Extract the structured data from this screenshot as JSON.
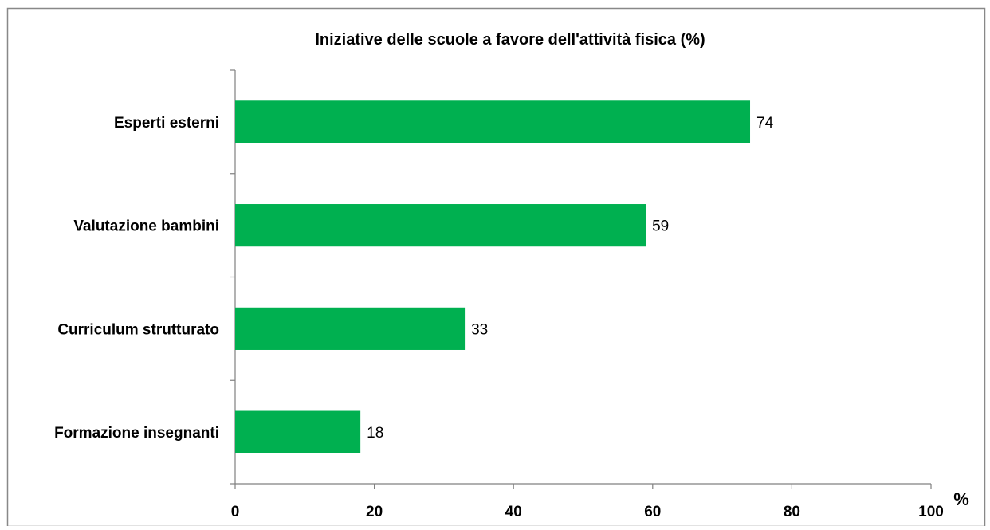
{
  "chart_data": {
    "type": "bar",
    "orientation": "horizontal",
    "title": "Iniziative delle scuole a favore dell'attività fisica (%)",
    "xlabel": "%",
    "ylabel": "",
    "categories": [
      "Esperti esterni",
      "Valutazione bambini",
      "Curriculum strutturato",
      "Formazione insegnanti"
    ],
    "values": [
      74,
      59,
      33,
      18
    ],
    "xlim": [
      0,
      100
    ],
    "x_ticks": [
      0,
      20,
      40,
      60,
      80,
      100
    ],
    "grid": false,
    "legend": "none",
    "data_labels": true,
    "bar_color": "#00B050"
  }
}
